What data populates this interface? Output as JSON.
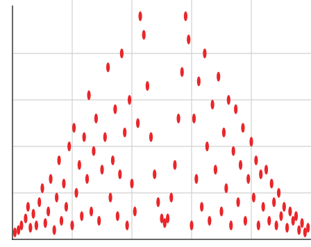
{
  "chart_data": {
    "type": "scatter",
    "color": "#e8262a",
    "grid": true,
    "xlim": [
      0,
      5
    ],
    "ylim": [
      0,
      5
    ],
    "xticks": [
      1,
      2,
      3,
      4
    ],
    "yticks": [
      1,
      2,
      3,
      4
    ],
    "x": [
      0.04,
      0.1,
      0.15,
      0.22,
      0.26,
      0.3,
      0.35,
      0.4,
      0.45,
      0.5,
      0.55,
      0.6,
      0.64,
      0.7,
      0.74,
      0.78,
      0.82,
      0.86,
      0.9,
      0.95,
      1.0,
      1.03,
      1.07,
      1.12,
      1.16,
      1.2,
      1.25,
      1.28,
      1.32,
      1.36,
      1.4,
      1.45,
      1.5,
      1.55,
      1.6,
      1.64,
      1.68,
      1.72,
      1.76,
      1.8,
      1.83,
      1.88,
      1.92,
      1.96,
      2.0,
      2.05,
      2.1,
      2.14,
      2.2,
      2.26,
      2.32,
      2.38,
      2.44,
      2.5,
      2.55,
      2.6,
      2.66,
      2.72,
      2.78,
      2.84,
      2.9,
      2.95,
      3.0,
      3.04,
      3.08,
      3.12,
      3.17,
      3.22,
      3.26,
      3.3,
      3.35,
      3.4,
      3.45,
      3.5,
      3.54,
      3.58,
      3.62,
      3.66,
      3.7,
      3.74,
      3.78,
      3.82,
      3.86,
      3.9,
      3.95,
      4.0,
      4.04,
      4.08,
      4.12,
      4.16,
      4.2,
      4.25,
      4.3,
      4.34,
      4.38,
      4.42,
      4.46,
      4.5,
      4.55,
      4.6,
      4.65,
      4.7,
      4.75,
      4.8,
      4.85,
      4.9,
      4.95
    ],
    "values": [
      0.15,
      0.2,
      0.3,
      0.45,
      0.7,
      0.25,
      0.55,
      0.3,
      0.8,
      1.1,
      0.35,
      0.6,
      1.3,
      0.2,
      0.9,
      1.7,
      0.4,
      1.2,
      0.7,
      2.0,
      0.3,
      2.4,
      1.0,
      1.6,
      0.5,
      2.2,
      1.3,
      3.1,
      0.6,
      1.9,
      2.6,
      0.4,
      1.5,
      2.2,
      3.7,
      0.9,
      1.7,
      2.8,
      0.5,
      1.4,
      4.0,
      2.3,
      0.3,
      3.0,
      1.2,
      0.6,
      2.5,
      4.8,
      4.4,
      3.3,
      2.2,
      1.4,
      0.8,
      0.45,
      0.35,
      0.45,
      0.9,
      1.6,
      2.6,
      3.6,
      4.8,
      4.3,
      0.3,
      2.6,
      1.3,
      3.4,
      0.7,
      4.0,
      2.0,
      0.4,
      2.9,
      1.5,
      3.5,
      0.6,
      2.3,
      1.1,
      3.0,
      0.3,
      1.9,
      2.8,
      0.8,
      1.6,
      2.4,
      0.4,
      1.3,
      2.1,
      0.9,
      1.7,
      0.3,
      1.4,
      0.7,
      1.5,
      0.4,
      1.2,
      0.8,
      0.3,
      1.0,
      0.5,
      0.7,
      0.25,
      0.6,
      0.4,
      0.5,
      0.2,
      0.35,
      0.15,
      0.25
    ]
  }
}
